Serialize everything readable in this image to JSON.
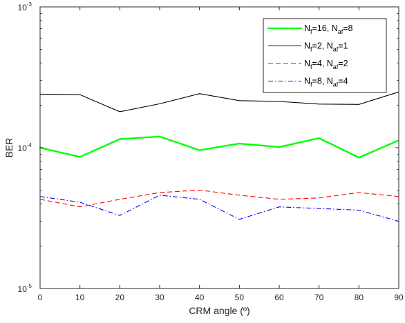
{
  "chart_data": {
    "type": "line",
    "title": "",
    "xlabel": "CRM angle (º)",
    "ylabel": "BER",
    "xlim": [
      0,
      90
    ],
    "ylim": [
      1e-05,
      0.001
    ],
    "y_scale": "log",
    "grid": false,
    "legend_position": "top-right",
    "x_ticks": [
      "0",
      "10",
      "20",
      "30",
      "40",
      "50",
      "60",
      "70",
      "80",
      "90"
    ],
    "y_ticks": [
      {
        "value": 1e-05,
        "base": "10",
        "exp": "-5"
      },
      {
        "value": 0.0001,
        "base": "10",
        "exp": "-4"
      },
      {
        "value": 0.001,
        "base": "10",
        "exp": "-3"
      }
    ],
    "x": [
      0,
      10,
      20,
      30,
      40,
      50,
      60,
      70,
      80,
      90
    ],
    "series": [
      {
        "name_parts": [
          "N",
          "f",
          "=16, N",
          "af",
          "=8"
        ],
        "color": "#00ff00",
        "dash": "dotted",
        "values": [
          0.0001,
          8.6e-05,
          0.000115,
          0.00012,
          9.6e-05,
          0.000107,
          0.000101,
          0.000117,
          8.5e-05,
          0.000113
        ]
      },
      {
        "name_parts": [
          "N",
          "f",
          "=2, N",
          "af",
          "=1"
        ],
        "color": "#000000",
        "dash": "solid",
        "values": [
          0.00024,
          0.000238,
          0.00018,
          0.000205,
          0.000242,
          0.000216,
          0.000213,
          0.000204,
          0.000203,
          0.000249
        ]
      },
      {
        "name_parts": [
          "N",
          "f",
          "=4, N",
          "af",
          "=2"
        ],
        "color": "#ff0000",
        "dash": "dashed",
        "values": [
          4.3e-05,
          3.8e-05,
          4.3e-05,
          4.8e-05,
          5e-05,
          4.6e-05,
          4.3e-05,
          4.4e-05,
          4.8e-05,
          4.5e-05
        ]
      },
      {
        "name_parts": [
          "N",
          "f",
          "=8, N",
          "af",
          "=4"
        ],
        "color": "#0000ff",
        "dash": "dashdot",
        "values": [
          4.5e-05,
          4.1e-05,
          3.3e-05,
          4.6e-05,
          4.3e-05,
          3.1e-05,
          3.8e-05,
          3.7e-05,
          3.6e-05,
          3e-05
        ]
      }
    ]
  }
}
